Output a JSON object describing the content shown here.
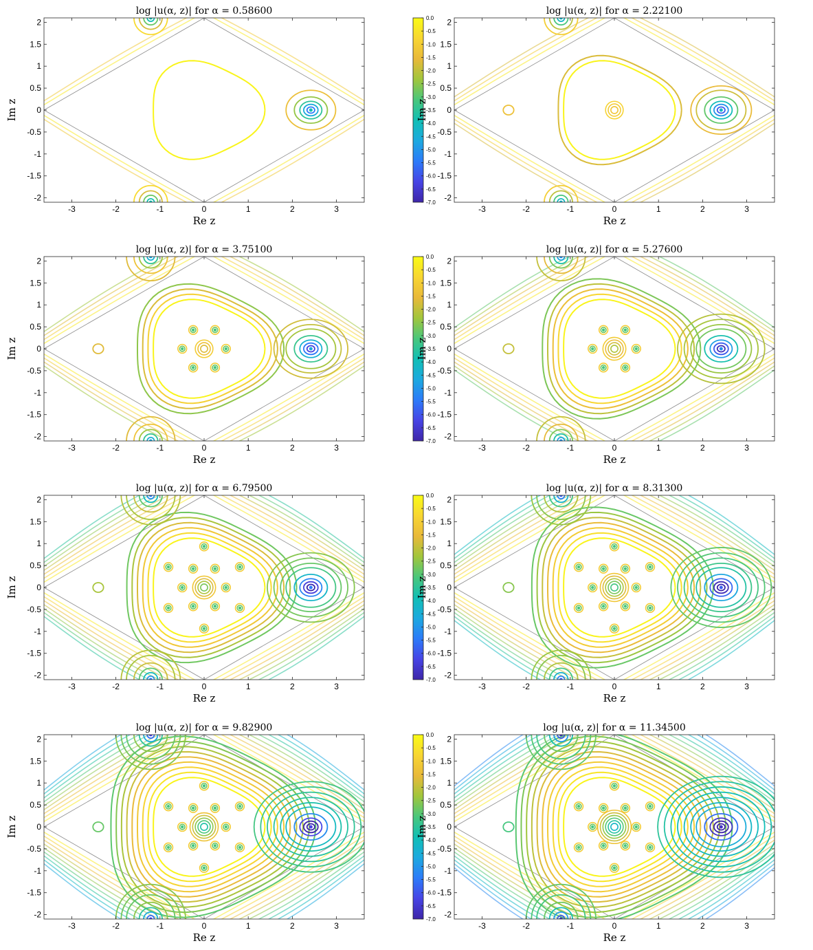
{
  "chart_data": [
    {
      "type": "contour",
      "title": "log |u(α, z)| for α = 0.58600",
      "xlabel": "Re z",
      "ylabel": "Im z",
      "xlim": [
        -3.63,
        3.63
      ],
      "ylim": [
        -2.1,
        2.1
      ],
      "xticks": [
        "-3",
        "-2",
        "-1",
        "0",
        "1",
        "2",
        "3"
      ],
      "yticks": [
        "2",
        "1.5",
        "1",
        "0.5",
        "0",
        "-0.5",
        "-1",
        "-1.5",
        "-2"
      ],
      "colorbar": {
        "range": [
          -7.0,
          0.0
        ],
        "ticks": [
          "0.0",
          "-0.5",
          "-1.0",
          "-1.5",
          "-2.0",
          "-2.5",
          "-3.0",
          "-3.5",
          "-4.0",
          "-4.5",
          "-5.0",
          "-5.5",
          "-6.0",
          "-6.5",
          "-7.0"
        ]
      },
      "grid": false
    },
    {
      "type": "contour",
      "title": "log |u(α, z)| for α = 2.22100",
      "xlabel": "Re z",
      "ylabel": "Im z",
      "xlim": [
        -3.63,
        3.63
      ],
      "ylim": [
        -2.1,
        2.1
      ],
      "xticks": [
        "-3",
        "-2",
        "-1",
        "0",
        "1",
        "2",
        "3"
      ],
      "yticks": [
        "2",
        "1.5",
        "1",
        "0.5",
        "0",
        "-0.5",
        "-1",
        "-1.5",
        "-2"
      ],
      "colorbar": {
        "range": [
          -7.0,
          0.0
        ],
        "ticks": [
          "0.0",
          "-0.5",
          "-1.0",
          "-1.5",
          "-2.0",
          "-2.5",
          "-3.0",
          "-3.5",
          "-4.0",
          "-4.5",
          "-5.0",
          "-5.5",
          "-6.0",
          "-6.5",
          "-7.0"
        ]
      },
      "grid": false
    },
    {
      "type": "contour",
      "title": "log |u(α, z)| for α = 3.75100",
      "xlabel": "Re z",
      "ylabel": "Im z",
      "xlim": [
        -3.63,
        3.63
      ],
      "ylim": [
        -2.1,
        2.1
      ],
      "xticks": [
        "-3",
        "-2",
        "-1",
        "0",
        "1",
        "2",
        "3"
      ],
      "yticks": [
        "2",
        "1.5",
        "1",
        "0.5",
        "0",
        "-0.5",
        "-1",
        "-1.5",
        "-2"
      ],
      "colorbar": {
        "range": [
          -7.0,
          0.0
        ],
        "ticks": [
          "0.0",
          "-0.5",
          "-1.0",
          "-1.5",
          "-2.0",
          "-2.5",
          "-3.0",
          "-3.5",
          "-4.0",
          "-4.5",
          "-5.0",
          "-5.5",
          "-6.0",
          "-6.5",
          "-7.0"
        ]
      },
      "grid": false
    },
    {
      "type": "contour",
      "title": "log |u(α, z)| for α = 5.27600",
      "xlabel": "Re z",
      "ylabel": "Im z",
      "xlim": [
        -3.63,
        3.63
      ],
      "ylim": [
        -2.1,
        2.1
      ],
      "xticks": [
        "-3",
        "-2",
        "-1",
        "0",
        "1",
        "2",
        "3"
      ],
      "yticks": [
        "2",
        "1.5",
        "1",
        "0.5",
        "0",
        "-0.5",
        "-1",
        "-1.5",
        "-2"
      ],
      "colorbar": {
        "range": [
          -7.0,
          0.0
        ],
        "ticks": [
          "0.0",
          "-0.5",
          "-1.0",
          "-1.5",
          "-2.0",
          "-2.5",
          "-3.0",
          "-3.5",
          "-4.0",
          "-4.5",
          "-5.0",
          "-5.5",
          "-6.0",
          "-6.5",
          "-7.0"
        ]
      },
      "grid": false
    },
    {
      "type": "contour",
      "title": "log |u(α, z)| for α = 6.79500",
      "xlabel": "Re z",
      "ylabel": "Im z",
      "xlim": [
        -3.63,
        3.63
      ],
      "ylim": [
        -2.1,
        2.1
      ],
      "xticks": [
        "-3",
        "-2",
        "-1",
        "0",
        "1",
        "2",
        "3"
      ],
      "yticks": [
        "2",
        "1.5",
        "1",
        "0.5",
        "0",
        "-0.5",
        "-1",
        "-1.5",
        "-2"
      ],
      "colorbar": {
        "range": [
          -7.0,
          0.0
        ],
        "ticks": [
          "0.0",
          "-0.5",
          "-1.0",
          "-1.5",
          "-2.0",
          "-2.5",
          "-3.0",
          "-3.5",
          "-4.0",
          "-4.5",
          "-5.0",
          "-5.5",
          "-6.0",
          "-6.5",
          "-7.0"
        ]
      },
      "grid": false
    },
    {
      "type": "contour",
      "title": "log |u(α, z)| for α = 8.31300",
      "xlabel": "Re z",
      "ylabel": "Im z",
      "xlim": [
        -3.63,
        3.63
      ],
      "ylim": [
        -2.1,
        2.1
      ],
      "xticks": [
        "-3",
        "-2",
        "-1",
        "0",
        "1",
        "2",
        "3"
      ],
      "yticks": [
        "2",
        "1.5",
        "1",
        "0.5",
        "0",
        "-0.5",
        "-1",
        "-1.5",
        "-2"
      ],
      "colorbar": {
        "range": [
          -7.0,
          0.0
        ],
        "ticks": [
          "0.0",
          "-0.5",
          "-1.0",
          "-1.5",
          "-2.0",
          "-2.5",
          "-3.0",
          "-3.5",
          "-4.0",
          "-4.5",
          "-5.0",
          "-5.5",
          "-6.0",
          "-6.5",
          "-7.0"
        ]
      },
      "grid": false
    },
    {
      "type": "contour",
      "title": "log |u(α, z)| for α = 9.82900",
      "xlabel": "Re z",
      "ylabel": "Im z",
      "xlim": [
        -3.63,
        3.63
      ],
      "ylim": [
        -2.1,
        2.1
      ],
      "xticks": [
        "-3",
        "-2",
        "-1",
        "0",
        "1",
        "2",
        "3"
      ],
      "yticks": [
        "2",
        "1.5",
        "1",
        "0.5",
        "0",
        "-0.5",
        "-1",
        "-1.5",
        "-2"
      ],
      "colorbar": {
        "range": [
          -7.0,
          0.0
        ],
        "ticks": [
          "0.0",
          "-0.5",
          "-1.0",
          "-1.5",
          "-2.0",
          "-2.5",
          "-3.0",
          "-3.5",
          "-4.0",
          "-4.5",
          "-5.0",
          "-5.5",
          "-6.0",
          "-6.5",
          "-7.0"
        ]
      },
      "grid": false
    },
    {
      "type": "contour",
      "title": "log |u(α, z)| for α = 11.34500",
      "xlabel": "Re z",
      "ylabel": "Im z",
      "xlim": [
        -3.63,
        3.63
      ],
      "ylim": [
        -2.1,
        2.1
      ],
      "xticks": [
        "-3",
        "-2",
        "-1",
        "0",
        "1",
        "2",
        "3"
      ],
      "yticks": [
        "2",
        "1.5",
        "1",
        "0.5",
        "0",
        "-0.5",
        "-1",
        "-1.5",
        "-2"
      ],
      "colorbar": {
        "range": [
          -7.0,
          0.0
        ],
        "ticks": [
          "0.0",
          "-0.5",
          "-1.0",
          "-1.5",
          "-2.0",
          "-2.5",
          "-3.0",
          "-3.5",
          "-4.0",
          "-4.5",
          "-5.0",
          "-5.5",
          "-6.0",
          "-6.5",
          "-7.0"
        ]
      },
      "grid": false
    }
  ],
  "colors": {
    "colormap": [
      "#3e26a8",
      "#4744e5",
      "#2c7bf9",
      "#1ca9df",
      "#11bfb5",
      "#49c77c",
      "#a1c63c",
      "#e9b93a",
      "#f8d632",
      "#f9fb15"
    ],
    "axis": "#262626",
    "diamond": "#8a8a8a"
  }
}
